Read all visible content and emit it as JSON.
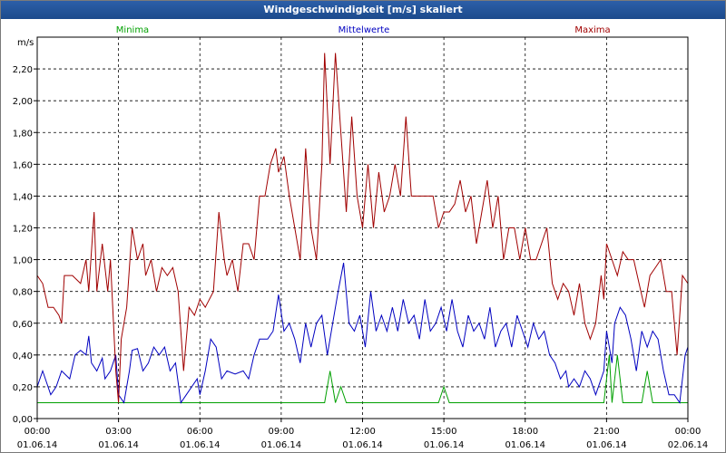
{
  "window": {
    "title": "Windgeschwindigkeit [m/s] skaliert"
  },
  "chart_data": {
    "type": "line",
    "title": "Windgeschwindigkeit [m/s] skaliert",
    "ylabel": "m/s",
    "ylim": [
      0,
      2.4
    ],
    "yticks": [
      "0,00",
      "0,20",
      "0,40",
      "0,60",
      "0,80",
      "1,00",
      "1,20",
      "1,40",
      "1,60",
      "1,80",
      "2,00",
      "2,20"
    ],
    "xticks": [
      {
        "time": "00:00",
        "date": "01.06.14"
      },
      {
        "time": "03:00",
        "date": "01.06.14"
      },
      {
        "time": "06:00",
        "date": "01.06.14"
      },
      {
        "time": "09:00",
        "date": "01.06.14"
      },
      {
        "time": "12:00",
        "date": "01.06.14"
      },
      {
        "time": "15:00",
        "date": "01.06.14"
      },
      {
        "time": "18:00",
        "date": "01.06.14"
      },
      {
        "time": "21:00",
        "date": "01.06.14"
      },
      {
        "time": "00:00",
        "date": "02.06.14"
      }
    ],
    "xlim_hours": [
      0,
      24
    ],
    "grid": true,
    "series": [
      {
        "name": "Minima",
        "color": "#00a000",
        "points": [
          [
            0,
            0.1
          ],
          [
            10.6,
            0.1
          ],
          [
            10.8,
            0.3
          ],
          [
            11.0,
            0.1
          ],
          [
            11.2,
            0.2
          ],
          [
            11.4,
            0.1
          ],
          [
            14.8,
            0.1
          ],
          [
            15.0,
            0.2
          ],
          [
            15.2,
            0.1
          ],
          [
            20.9,
            0.1
          ],
          [
            21.1,
            0.4
          ],
          [
            21.2,
            0.1
          ],
          [
            21.4,
            0.4
          ],
          [
            21.6,
            0.1
          ],
          [
            22.3,
            0.1
          ],
          [
            22.5,
            0.3
          ],
          [
            22.7,
            0.1
          ],
          [
            24.0,
            0.1
          ]
        ]
      },
      {
        "name": "Mittelwerte",
        "color": "#0000c0",
        "points": [
          [
            0,
            0.2
          ],
          [
            0.2,
            0.3
          ],
          [
            0.5,
            0.15
          ],
          [
            0.7,
            0.2
          ],
          [
            0.9,
            0.3
          ],
          [
            1.2,
            0.25
          ],
          [
            1.4,
            0.4
          ],
          [
            1.6,
            0.43
          ],
          [
            1.8,
            0.4
          ],
          [
            1.9,
            0.52
          ],
          [
            2.0,
            0.35
          ],
          [
            2.2,
            0.3
          ],
          [
            2.4,
            0.38
          ],
          [
            2.5,
            0.25
          ],
          [
            2.7,
            0.3
          ],
          [
            2.9,
            0.4
          ],
          [
            3.0,
            0.15
          ],
          [
            3.2,
            0.1
          ],
          [
            3.4,
            0.3
          ],
          [
            3.5,
            0.43
          ],
          [
            3.7,
            0.44
          ],
          [
            3.9,
            0.3
          ],
          [
            4.1,
            0.35
          ],
          [
            4.3,
            0.45
          ],
          [
            4.5,
            0.4
          ],
          [
            4.7,
            0.45
          ],
          [
            4.9,
            0.3
          ],
          [
            5.1,
            0.35
          ],
          [
            5.3,
            0.1
          ],
          [
            5.5,
            0.15
          ],
          [
            5.7,
            0.2
          ],
          [
            5.9,
            0.25
          ],
          [
            6.0,
            0.15
          ],
          [
            6.2,
            0.3
          ],
          [
            6.4,
            0.5
          ],
          [
            6.6,
            0.45
          ],
          [
            6.8,
            0.25
          ],
          [
            7.0,
            0.3
          ],
          [
            7.3,
            0.28
          ],
          [
            7.6,
            0.3
          ],
          [
            7.8,
            0.25
          ],
          [
            8.0,
            0.4
          ],
          [
            8.2,
            0.5
          ],
          [
            8.5,
            0.5
          ],
          [
            8.7,
            0.55
          ],
          [
            8.9,
            0.78
          ],
          [
            9.1,
            0.55
          ],
          [
            9.3,
            0.6
          ],
          [
            9.5,
            0.5
          ],
          [
            9.7,
            0.35
          ],
          [
            9.9,
            0.6
          ],
          [
            10.1,
            0.45
          ],
          [
            10.3,
            0.6
          ],
          [
            10.5,
            0.65
          ],
          [
            10.7,
            0.4
          ],
          [
            10.9,
            0.6
          ],
          [
            11.1,
            0.8
          ],
          [
            11.3,
            0.98
          ],
          [
            11.5,
            0.6
          ],
          [
            11.7,
            0.55
          ],
          [
            11.9,
            0.65
          ],
          [
            12.1,
            0.45
          ],
          [
            12.3,
            0.8
          ],
          [
            12.5,
            0.55
          ],
          [
            12.7,
            0.65
          ],
          [
            12.9,
            0.55
          ],
          [
            13.1,
            0.7
          ],
          [
            13.3,
            0.55
          ],
          [
            13.5,
            0.75
          ],
          [
            13.7,
            0.6
          ],
          [
            13.9,
            0.65
          ],
          [
            14.1,
            0.5
          ],
          [
            14.3,
            0.75
          ],
          [
            14.5,
            0.55
          ],
          [
            14.7,
            0.6
          ],
          [
            14.9,
            0.7
          ],
          [
            15.1,
            0.55
          ],
          [
            15.3,
            0.75
          ],
          [
            15.5,
            0.55
          ],
          [
            15.7,
            0.45
          ],
          [
            15.9,
            0.65
          ],
          [
            16.1,
            0.55
          ],
          [
            16.3,
            0.6
          ],
          [
            16.5,
            0.5
          ],
          [
            16.7,
            0.7
          ],
          [
            16.9,
            0.45
          ],
          [
            17.1,
            0.55
          ],
          [
            17.3,
            0.6
          ],
          [
            17.5,
            0.45
          ],
          [
            17.7,
            0.65
          ],
          [
            17.9,
            0.55
          ],
          [
            18.1,
            0.45
          ],
          [
            18.3,
            0.6
          ],
          [
            18.5,
            0.5
          ],
          [
            18.7,
            0.55
          ],
          [
            18.9,
            0.4
          ],
          [
            19.1,
            0.35
          ],
          [
            19.3,
            0.25
          ],
          [
            19.5,
            0.3
          ],
          [
            19.6,
            0.2
          ],
          [
            19.8,
            0.25
          ],
          [
            20.0,
            0.2
          ],
          [
            20.2,
            0.3
          ],
          [
            20.4,
            0.25
          ],
          [
            20.6,
            0.15
          ],
          [
            20.8,
            0.25
          ],
          [
            20.9,
            0.3
          ],
          [
            21.0,
            0.55
          ],
          [
            21.2,
            0.35
          ],
          [
            21.3,
            0.6
          ],
          [
            21.5,
            0.7
          ],
          [
            21.7,
            0.65
          ],
          [
            21.9,
            0.5
          ],
          [
            22.1,
            0.3
          ],
          [
            22.3,
            0.55
          ],
          [
            22.5,
            0.45
          ],
          [
            22.7,
            0.55
          ],
          [
            22.9,
            0.5
          ],
          [
            23.1,
            0.3
          ],
          [
            23.3,
            0.15
          ],
          [
            23.5,
            0.15
          ],
          [
            23.7,
            0.1
          ],
          [
            23.9,
            0.4
          ],
          [
            24.0,
            0.45
          ]
        ]
      },
      {
        "name": "Maxima",
        "color": "#a00000",
        "points": [
          [
            0,
            0.9
          ],
          [
            0.2,
            0.85
          ],
          [
            0.4,
            0.7
          ],
          [
            0.6,
            0.7
          ],
          [
            0.8,
            0.65
          ],
          [
            0.9,
            0.6
          ],
          [
            1.0,
            0.9
          ],
          [
            1.3,
            0.9
          ],
          [
            1.6,
            0.85
          ],
          [
            1.8,
            1.0
          ],
          [
            1.9,
            0.8
          ],
          [
            2.1,
            1.3
          ],
          [
            2.2,
            0.8
          ],
          [
            2.4,
            1.1
          ],
          [
            2.6,
            0.8
          ],
          [
            2.7,
            1.0
          ],
          [
            2.9,
            0.3
          ],
          [
            3.0,
            0.1
          ],
          [
            3.1,
            0.5
          ],
          [
            3.3,
            0.7
          ],
          [
            3.5,
            1.2
          ],
          [
            3.7,
            1.0
          ],
          [
            3.9,
            1.1
          ],
          [
            4.0,
            0.9
          ],
          [
            4.2,
            1.0
          ],
          [
            4.4,
            0.8
          ],
          [
            4.6,
            0.95
          ],
          [
            4.8,
            0.9
          ],
          [
            5.0,
            0.95
          ],
          [
            5.2,
            0.8
          ],
          [
            5.4,
            0.3
          ],
          [
            5.6,
            0.7
          ],
          [
            5.8,
            0.65
          ],
          [
            6.0,
            0.75
          ],
          [
            6.2,
            0.7
          ],
          [
            6.5,
            0.8
          ],
          [
            6.7,
            1.3
          ],
          [
            6.9,
            1.0
          ],
          [
            7.0,
            0.9
          ],
          [
            7.2,
            1.0
          ],
          [
            7.4,
            0.8
          ],
          [
            7.6,
            1.1
          ],
          [
            7.8,
            1.1
          ],
          [
            8.0,
            1.0
          ],
          [
            8.2,
            1.4
          ],
          [
            8.4,
            1.4
          ],
          [
            8.6,
            1.6
          ],
          [
            8.8,
            1.7
          ],
          [
            8.9,
            1.55
          ],
          [
            9.1,
            1.65
          ],
          [
            9.3,
            1.4
          ],
          [
            9.5,
            1.2
          ],
          [
            9.7,
            1.0
          ],
          [
            9.9,
            1.7
          ],
          [
            10.1,
            1.2
          ],
          [
            10.3,
            1.0
          ],
          [
            10.5,
            1.6
          ],
          [
            10.6,
            2.3
          ],
          [
            10.8,
            1.6
          ],
          [
            11.0,
            2.3
          ],
          [
            11.2,
            1.8
          ],
          [
            11.4,
            1.3
          ],
          [
            11.6,
            1.9
          ],
          [
            11.8,
            1.4
          ],
          [
            12.0,
            1.2
          ],
          [
            12.2,
            1.6
          ],
          [
            12.4,
            1.2
          ],
          [
            12.6,
            1.55
          ],
          [
            12.8,
            1.3
          ],
          [
            13.0,
            1.4
          ],
          [
            13.2,
            1.6
          ],
          [
            13.4,
            1.4
          ],
          [
            13.6,
            1.9
          ],
          [
            13.8,
            1.4
          ],
          [
            14.0,
            1.4
          ],
          [
            14.2,
            1.4
          ],
          [
            14.4,
            1.4
          ],
          [
            14.6,
            1.4
          ],
          [
            14.8,
            1.2
          ],
          [
            15.0,
            1.3
          ],
          [
            15.2,
            1.3
          ],
          [
            15.4,
            1.35
          ],
          [
            15.6,
            1.5
          ],
          [
            15.8,
            1.3
          ],
          [
            16.0,
            1.4
          ],
          [
            16.2,
            1.1
          ],
          [
            16.4,
            1.3
          ],
          [
            16.6,
            1.5
          ],
          [
            16.8,
            1.2
          ],
          [
            17.0,
            1.4
          ],
          [
            17.2,
            1.0
          ],
          [
            17.4,
            1.2
          ],
          [
            17.6,
            1.2
          ],
          [
            17.8,
            1.0
          ],
          [
            18.0,
            1.2
          ],
          [
            18.2,
            1.0
          ],
          [
            18.4,
            1.0
          ],
          [
            18.6,
            1.1
          ],
          [
            18.8,
            1.2
          ],
          [
            19.0,
            0.85
          ],
          [
            19.2,
            0.75
          ],
          [
            19.4,
            0.85
          ],
          [
            19.6,
            0.8
          ],
          [
            19.8,
            0.65
          ],
          [
            20.0,
            0.85
          ],
          [
            20.2,
            0.6
          ],
          [
            20.4,
            0.5
          ],
          [
            20.6,
            0.6
          ],
          [
            20.8,
            0.9
          ],
          [
            20.9,
            0.75
          ],
          [
            21.0,
            1.1
          ],
          [
            21.2,
            1.0
          ],
          [
            21.4,
            0.9
          ],
          [
            21.6,
            1.05
          ],
          [
            21.8,
            1.0
          ],
          [
            22.0,
            1.0
          ],
          [
            22.2,
            0.85
          ],
          [
            22.4,
            0.7
          ],
          [
            22.6,
            0.9
          ],
          [
            22.8,
            0.95
          ],
          [
            23.0,
            1.0
          ],
          [
            23.2,
            0.8
          ],
          [
            23.4,
            0.8
          ],
          [
            23.6,
            0.4
          ],
          [
            23.8,
            0.9
          ],
          [
            24.0,
            0.85
          ]
        ]
      }
    ]
  }
}
